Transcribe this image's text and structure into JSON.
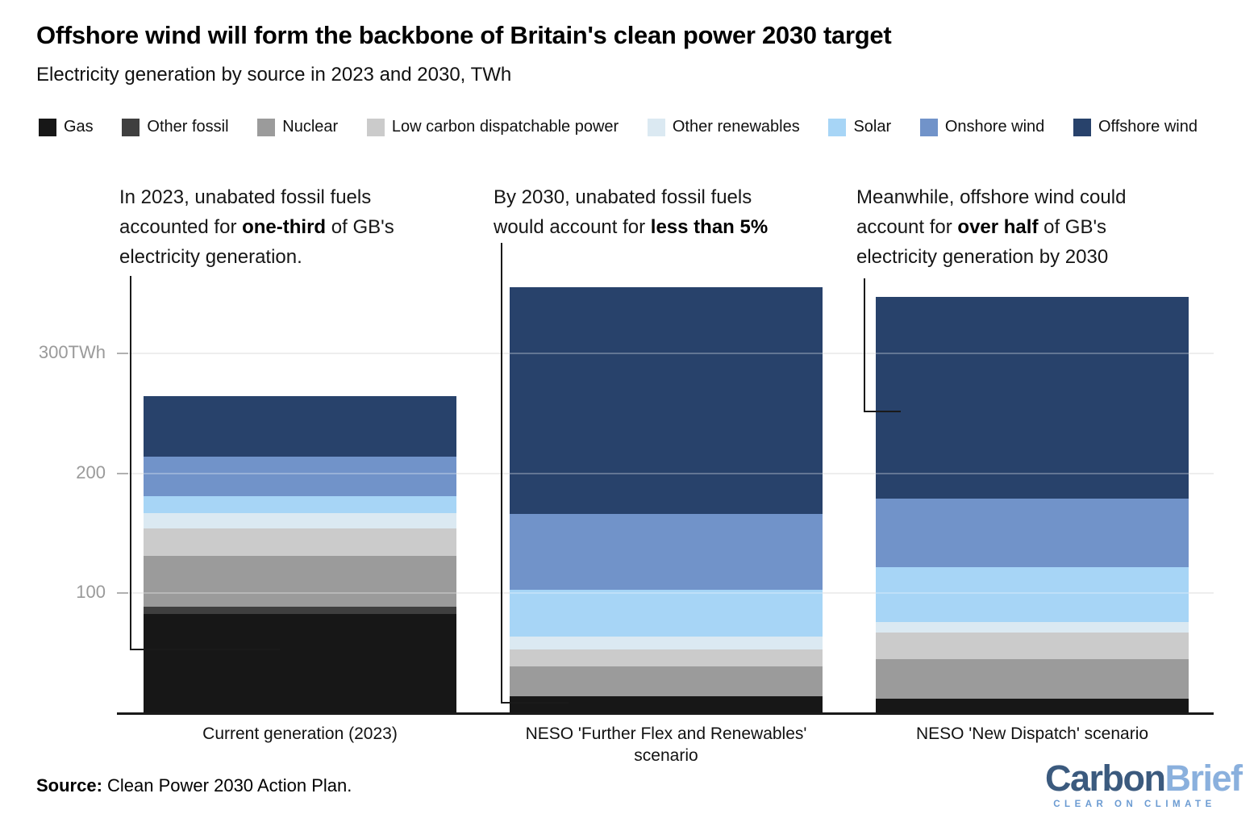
{
  "title": "Offshore wind will form the backbone of Britain's clean power 2030 target",
  "subtitle": "Electricity generation by source in 2023 and 2030, TWh",
  "annotations": [
    {
      "lines": [
        [
          {
            "text": "In 2023, unabated fossil fuels",
            "bold": false
          }
        ],
        [
          {
            "text": "accounted for ",
            "bold": false
          },
          {
            "text": "one-third",
            "bold": true
          },
          {
            "text": " of GB's",
            "bold": false
          }
        ],
        [
          {
            "text": "electricity generation.",
            "bold": false
          }
        ]
      ]
    },
    {
      "lines": [
        [
          {
            "text": "By 2030, unabated fossil fuels",
            "bold": false
          }
        ],
        [
          {
            "text": "would account for ",
            "bold": false
          },
          {
            "text": "less than 5%",
            "bold": true
          }
        ]
      ]
    },
    {
      "lines": [
        [
          {
            "text": "Meanwhile, offshore wind could",
            "bold": false
          }
        ],
        [
          {
            "text": "account for ",
            "bold": false
          },
          {
            "text": "over half",
            "bold": true
          },
          {
            "text": " of GB's",
            "bold": false
          }
        ],
        [
          {
            "text": "electricity generation by 2030",
            "bold": false
          }
        ]
      ]
    }
  ],
  "chart_data": {
    "type": "bar",
    "stacked": true,
    "categories": [
      "Current generation (2023)",
      "NESO 'Further Flex and Renewables' scenario",
      "NESO 'New Dispatch' scenario"
    ],
    "category_label_lines": [
      [
        "Current generation (2023)"
      ],
      [
        "NESO 'Further Flex and Renewables'",
        "scenario"
      ],
      [
        "NESO 'New Dispatch' scenario"
      ]
    ],
    "series": [
      {
        "name": "Gas",
        "color": "#171717",
        "values": [
          83,
          14,
          12
        ]
      },
      {
        "name": "Other fossil",
        "color": "#3f3f3f",
        "values": [
          6,
          0,
          0
        ]
      },
      {
        "name": "Nuclear",
        "color": "#9b9b9b",
        "values": [
          42,
          25,
          33
        ]
      },
      {
        "name": "Low carbon dispatchable power",
        "color": "#cbcbcb",
        "values": [
          23,
          14,
          22
        ]
      },
      {
        "name": "Other renewables",
        "color": "#dbe9f2",
        "values": [
          13,
          11,
          9
        ]
      },
      {
        "name": "Solar",
        "color": "#a7d5f6",
        "values": [
          14,
          39,
          46
        ]
      },
      {
        "name": "Onshore wind",
        "color": "#7193c9",
        "values": [
          33,
          63,
          57
        ]
      },
      {
        "name": "Offshore wind",
        "color": "#28426b",
        "values": [
          50,
          189,
          168
        ]
      }
    ],
    "totals": [
      264,
      355,
      347
    ],
    "ylabel": "TWh",
    "ylim": [
      0,
      320
    ],
    "yticks": [
      {
        "label": "300TWh",
        "value": 300
      },
      {
        "label": "200",
        "value": 200
      },
      {
        "label": "100",
        "value": 100
      }
    ],
    "grid": true,
    "legend_position": "top"
  },
  "source": {
    "label": "Source:",
    "text": " Clean Power 2030 Action Plan."
  },
  "logo": {
    "part1": "Carbon",
    "part2": "Brief",
    "tagline": "CLEAR ON CLIMATE",
    "part1_color": "#3b5a7e",
    "part2_color": "#8ab0dd",
    "tagline_color": "#6b9bd2"
  }
}
